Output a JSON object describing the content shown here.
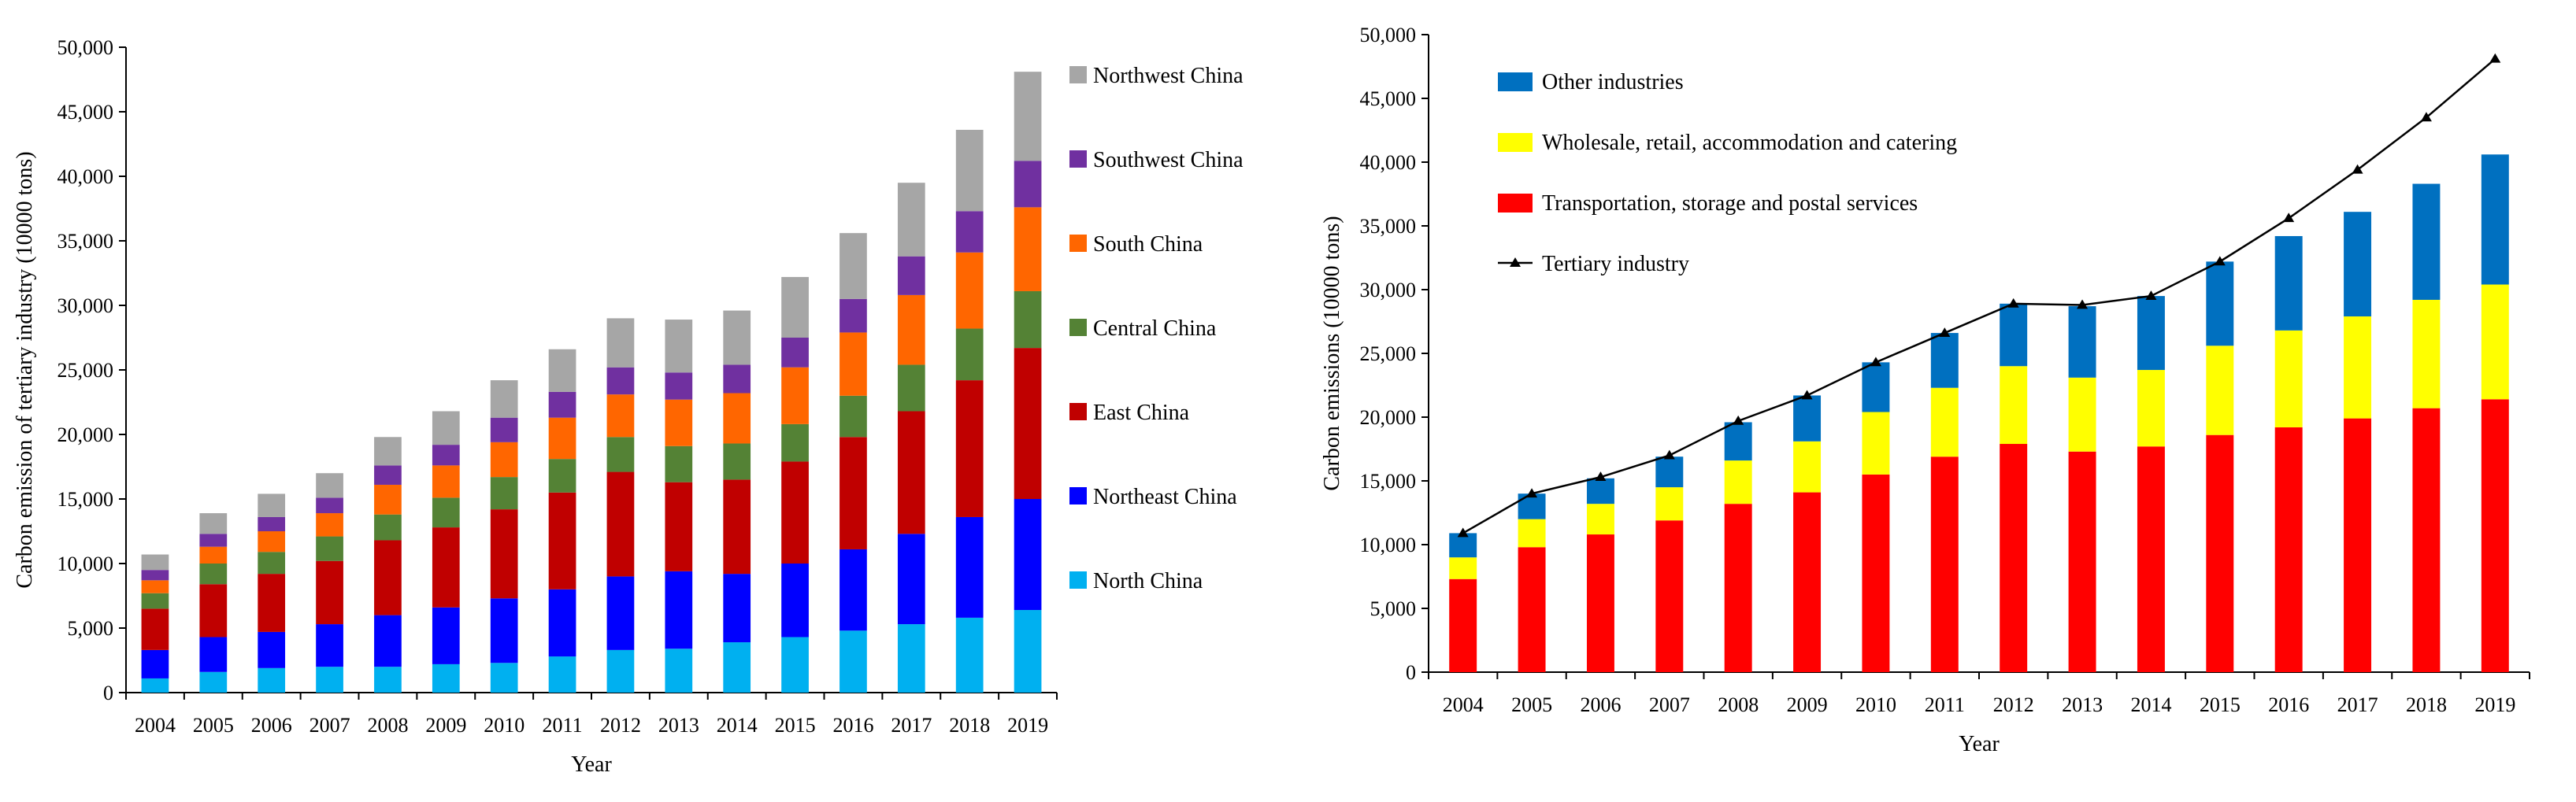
{
  "chart_data": [
    {
      "type": "bar",
      "stacked": true,
      "title": "",
      "xlabel": "Year",
      "ylabel": "Carbon emission of tertiary industry (10000 tons)",
      "ylim": [
        0,
        50000
      ],
      "ytick_step": 5000,
      "ytick_labels": [
        "0",
        "5,000",
        "10,000",
        "15,000",
        "20,000",
        "25,000",
        "30,000",
        "35,000",
        "40,000",
        "45,000",
        "50,000"
      ],
      "categories": [
        "2004",
        "2005",
        "2006",
        "2007",
        "2008",
        "2009",
        "2010",
        "2011",
        "2012",
        "2013",
        "2014",
        "2015",
        "2016",
        "2017",
        "2018",
        "2019"
      ],
      "legend_position": "right",
      "series": [
        {
          "name": "North China",
          "color": "#00B0F0",
          "values": [
            1100,
            1600,
            1900,
            2000,
            2000,
            2200,
            2300,
            2800,
            3300,
            3400,
            3900,
            4300,
            4800,
            5300,
            5800,
            6400
          ]
        },
        {
          "name": "Northeast China",
          "color": "#0000FF",
          "values": [
            2200,
            2700,
            2800,
            3300,
            4000,
            4400,
            5000,
            5200,
            5700,
            6000,
            5300,
            5700,
            6300,
            7000,
            7800,
            8600
          ]
        },
        {
          "name": "East China",
          "color": "#C00000",
          "values": [
            3200,
            4100,
            4500,
            4900,
            5800,
            6200,
            6900,
            7500,
            8100,
            6900,
            7300,
            7900,
            8700,
            9500,
            10600,
            11700
          ]
        },
        {
          "name": "Central China",
          "color": "#548235",
          "values": [
            1200,
            1600,
            1700,
            1900,
            2000,
            2300,
            2500,
            2600,
            2700,
            2800,
            2800,
            2900,
            3200,
            3600,
            4000,
            4400
          ]
        },
        {
          "name": "South China",
          "color": "#FF6600",
          "values": [
            1000,
            1300,
            1600,
            1800,
            2300,
            2500,
            2700,
            3200,
            3300,
            3600,
            3900,
            4400,
            4900,
            5400,
            5900,
            6500
          ]
        },
        {
          "name": "Southwest China",
          "color": "#7030A0",
          "values": [
            800,
            1000,
            1100,
            1200,
            1500,
            1600,
            1900,
            2000,
            2100,
            2100,
            2200,
            2300,
            2600,
            3000,
            3200,
            3600
          ]
        },
        {
          "name": "Northwest China",
          "color": "#A6A6A6",
          "values": [
            1200,
            1600,
            1800,
            1900,
            2200,
            2600,
            2900,
            3300,
            3800,
            4100,
            4200,
            4700,
            5100,
            5700,
            6300,
            6900
          ]
        }
      ]
    },
    {
      "type": "bar",
      "stacked": true,
      "title": "",
      "xlabel": "Year",
      "ylabel": "Carbon emissions (10000 tons)",
      "ylim": [
        0,
        50000
      ],
      "ytick_step": 5000,
      "ytick_labels": [
        "0",
        "5,000",
        "10,000",
        "15,000",
        "20,000",
        "25,000",
        "30,000",
        "35,000",
        "40,000",
        "45,000",
        "50,000"
      ],
      "categories": [
        "2004",
        "2005",
        "2006",
        "2007",
        "2008",
        "2009",
        "2010",
        "2011",
        "2012",
        "2013",
        "2014",
        "2015",
        "2016",
        "2017",
        "2018",
        "2019"
      ],
      "legend_position": "top-left",
      "series": [
        {
          "name": "Transportation, storage and postal services",
          "color": "#FF0000",
          "values": [
            7300,
            9800,
            10800,
            11900,
            13200,
            14100,
            15500,
            16900,
            17900,
            17300,
            17700,
            18600,
            19200,
            19900,
            20700,
            21400
          ]
        },
        {
          "name": "Wholesale, retail, accommodation and catering",
          "color": "#FFFF00",
          "values": [
            1700,
            2200,
            2400,
            2600,
            3400,
            4000,
            4900,
            5400,
            6100,
            5800,
            6000,
            7000,
            7600,
            8000,
            8500,
            9000
          ]
        },
        {
          "name": "Other industries",
          "color": "#0070C0",
          "values": [
            1900,
            2000,
            2000,
            2400,
            3000,
            3600,
            3900,
            4300,
            4900,
            5600,
            5800,
            6600,
            7400,
            8200,
            9100,
            10200
          ]
        }
      ],
      "line_series": {
        "name": "Tertiary industry",
        "color": "#000000",
        "values": [
          10900,
          14000,
          15300,
          17000,
          19700,
          21700,
          24300,
          26600,
          28900,
          28800,
          29500,
          32200,
          35600,
          39400,
          43500,
          48100
        ]
      },
      "legend_order": [
        "Other industries",
        "Wholesale, retail, accommodation and catering",
        "Transportation, storage and postal services",
        "Tertiary industry"
      ]
    }
  ]
}
